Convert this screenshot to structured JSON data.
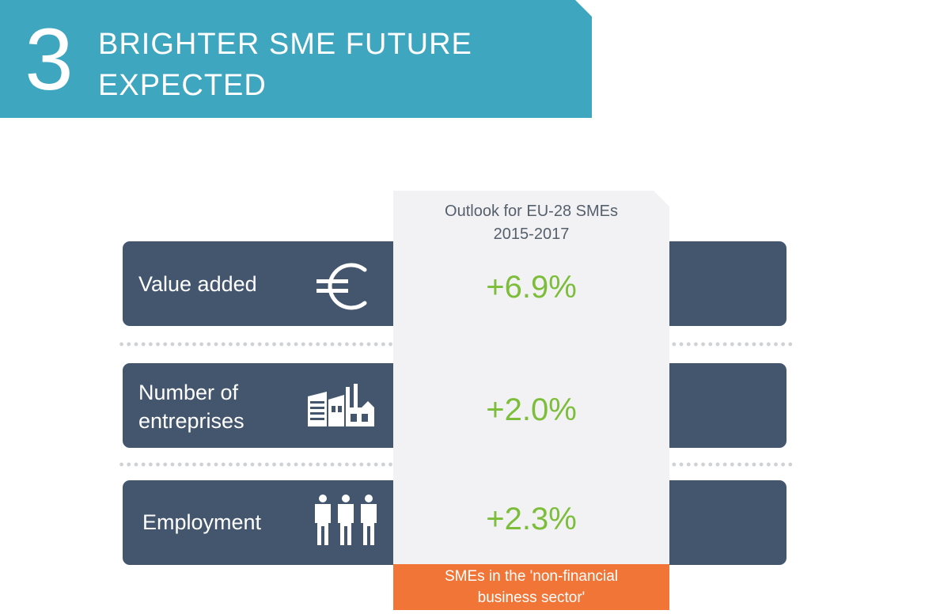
{
  "banner": {
    "number": "3",
    "title_line1": "BRIGHTER SME FUTURE",
    "title_line2": "EXPECTED",
    "color": "#3fa6c0"
  },
  "panel": {
    "header_line1": "Outlook for EU-28 SMEs",
    "header_line2": "2015-2017"
  },
  "indicators": [
    {
      "label": "Value added",
      "icon": "euro-icon",
      "value": "+6.9%"
    },
    {
      "label_line1": "Number of",
      "label_line2": "entreprises",
      "icon": "factory-icon",
      "value": "+2.0%"
    },
    {
      "label": "Employment",
      "icon": "people-icon",
      "value": "+2.3%"
    }
  ],
  "footnote": {
    "line1": "SMEs in the 'non-financial",
    "line2": "business sector'"
  },
  "colors": {
    "row_background": "#44566e",
    "panel_background": "#f2f2f4",
    "value_green": "#7cbd3a",
    "footnote_orange": "#f07536"
  }
}
